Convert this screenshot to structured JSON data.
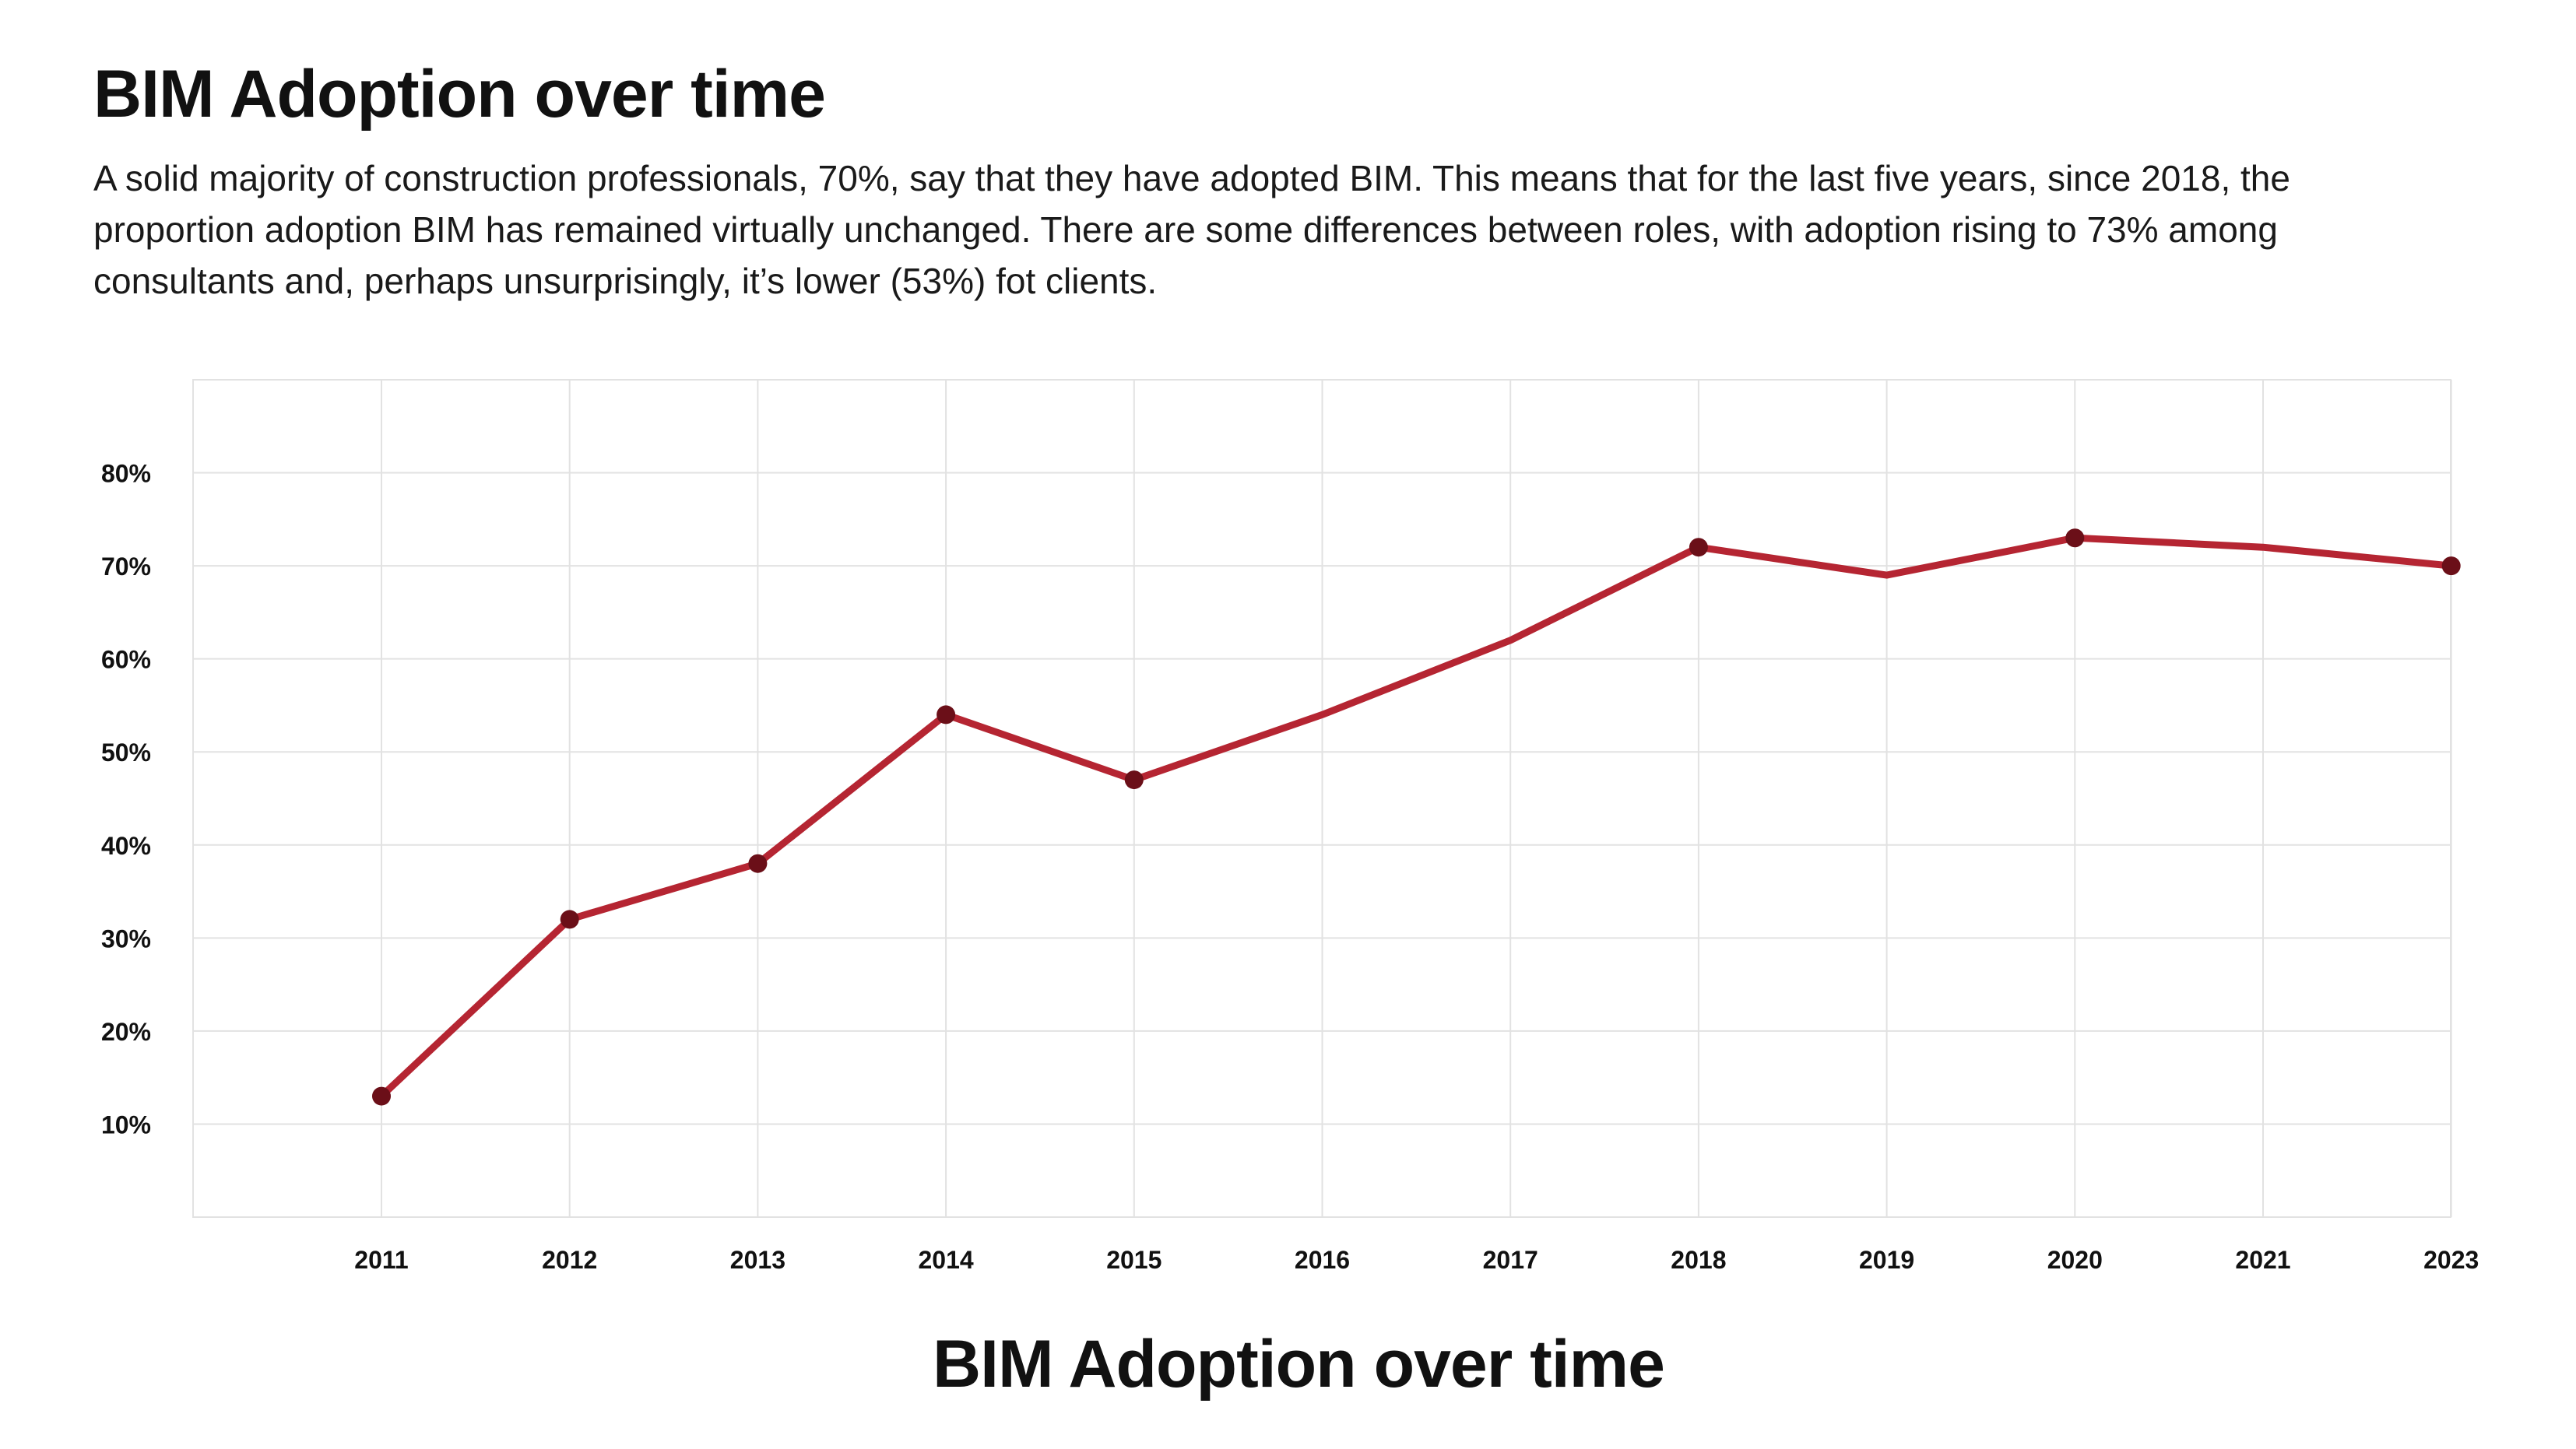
{
  "header": {
    "title": "BIM Adoption over time",
    "description": "A solid majority of construction professionals, 70%, say that they have adopted BIM. This means that for the last five years, since 2018, the proportion adoption BIM has remained virtually unchanged. There are some differences between roles, with adoption rising to 73% among consultants and, perhaps unsurprisingly, it’s lower (53%) fot clients."
  },
  "colors": {
    "line": "#b52532",
    "marker": "#6b0f18",
    "grid": "#e2e2e2"
  },
  "chart_data": {
    "type": "line",
    "title": "BIM Adoption over time",
    "xlabel": "",
    "ylabel": "",
    "categories": [
      "2011",
      "2012",
      "2013",
      "2014",
      "2015",
      "2016",
      "2017",
      "2018",
      "2019",
      "2020",
      "2021",
      "2023"
    ],
    "y_ticks": [
      "10%",
      "20%",
      "30%",
      "40%",
      "50%",
      "60%",
      "70%",
      "80%"
    ],
    "y_tick_values": [
      10,
      20,
      30,
      40,
      50,
      60,
      70,
      80
    ],
    "ylim": [
      0,
      90
    ],
    "grid": true,
    "legend": "none",
    "series": [
      {
        "values": [
          13,
          32,
          38,
          54,
          47,
          54,
          62,
          72,
          69,
          73,
          72,
          70
        ],
        "markers": [
          true,
          true,
          true,
          true,
          true,
          false,
          false,
          true,
          false,
          true,
          false,
          true
        ]
      }
    ]
  }
}
